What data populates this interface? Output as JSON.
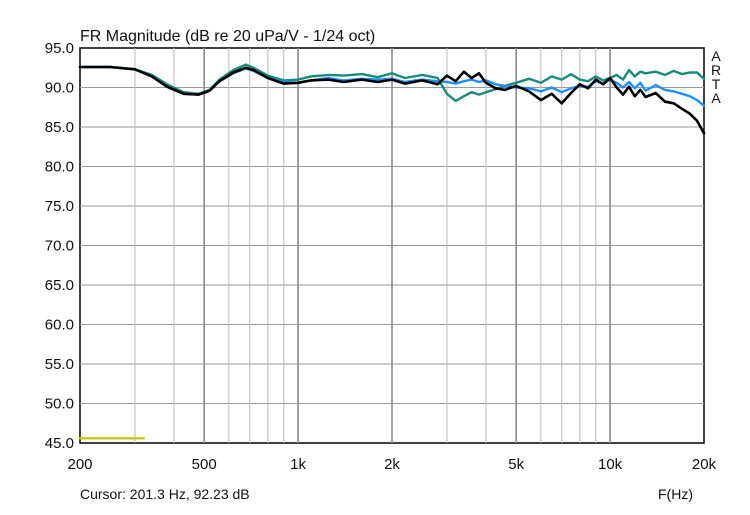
{
  "chart_data": {
    "type": "line",
    "title": "FR Magnitude (dB re 20 uPa/V - 1/24 oct)",
    "xlabel": "F(Hz)",
    "ylabel": "",
    "xscale": "log",
    "xlim": [
      200,
      20000
    ],
    "ylim": [
      45,
      95
    ],
    "x_ticks": [
      200,
      500,
      1000,
      2000,
      5000,
      10000,
      20000
    ],
    "x_tick_labels": [
      "200",
      "500",
      "1k",
      "2k",
      "5k",
      "10k",
      "20k"
    ],
    "y_ticks": [
      95,
      90,
      85,
      80,
      75,
      70,
      65,
      60,
      55,
      50,
      45
    ],
    "y_tick_labels": [
      "95.0",
      "90.0",
      "85.0",
      "80.0",
      "75.0",
      "70.0",
      "65.0",
      "60.0",
      "55.0",
      "50.0",
      "45.0"
    ],
    "grid": true,
    "cursor_readout": "Cursor: 201.3 Hz, 92.23 dB",
    "brand_letters": [
      "A",
      "R",
      "T",
      "A"
    ],
    "series": [
      {
        "color": "#1a8a7a",
        "x": [
          200,
          250,
          300,
          340,
          380,
          430,
          480,
          520,
          560,
          620,
          680,
          720,
          800,
          900,
          1000,
          1100,
          1250,
          1400,
          1600,
          1800,
          2000,
          2200,
          2500,
          2800,
          3000,
          3200,
          3400,
          3600,
          3800,
          4000,
          4300,
          4600,
          5000,
          5500,
          6000,
          6500,
          7000,
          7500,
          8000,
          8500,
          9000,
          9500,
          10000,
          10500,
          11000,
          11500,
          12000,
          12500,
          13000,
          14000,
          15000,
          16000,
          17000,
          18000,
          19000,
          20000
        ],
        "y": [
          92.6,
          92.6,
          92.3,
          91.6,
          90.4,
          89.4,
          89.2,
          89.7,
          91.0,
          92.2,
          92.9,
          92.5,
          91.5,
          90.9,
          91.0,
          91.4,
          91.6,
          91.5,
          91.7,
          91.3,
          91.8,
          91.2,
          91.6,
          91.2,
          89.2,
          88.3,
          88.9,
          89.4,
          89.1,
          89.4,
          89.8,
          90.2,
          90.6,
          91.1,
          90.6,
          91.4,
          91.0,
          91.7,
          91.0,
          90.8,
          91.4,
          90.9,
          91.2,
          91.6,
          91.0,
          92.2,
          91.4,
          92.0,
          91.8,
          92.0,
          91.6,
          92.1,
          91.7,
          91.9,
          91.9,
          91.1
        ]
      },
      {
        "color": "#1f8fff",
        "x": [
          200,
          250,
          300,
          340,
          380,
          430,
          480,
          520,
          560,
          620,
          680,
          720,
          800,
          900,
          1000,
          1100,
          1250,
          1400,
          1600,
          1800,
          2000,
          2200,
          2500,
          2800,
          3000,
          3200,
          3400,
          3600,
          3800,
          4000,
          4300,
          4600,
          5000,
          5500,
          6000,
          6500,
          7000,
          7500,
          8000,
          8500,
          9000,
          9500,
          10000,
          10500,
          11000,
          11500,
          12000,
          12500,
          13000,
          14000,
          15000,
          16000,
          17000,
          18000,
          19000,
          20000
        ],
        "y": [
          92.6,
          92.6,
          92.3,
          91.4,
          90.1,
          89.2,
          89.1,
          89.6,
          90.8,
          91.8,
          92.4,
          92.1,
          91.2,
          90.7,
          90.6,
          90.9,
          91.2,
          90.9,
          91.1,
          91.0,
          91.1,
          90.7,
          91.0,
          90.8,
          90.7,
          90.5,
          90.8,
          91.0,
          90.7,
          90.9,
          90.4,
          90.2,
          90.0,
          89.9,
          89.5,
          90.0,
          89.4,
          89.9,
          90.2,
          90.1,
          90.8,
          90.5,
          91.0,
          90.6,
          90.0,
          90.7,
          89.9,
          90.6,
          89.6,
          90.3,
          89.7,
          89.5,
          89.2,
          88.9,
          88.4,
          87.7
        ]
      },
      {
        "color": "#000000",
        "x": [
          200,
          250,
          300,
          340,
          380,
          430,
          480,
          520,
          560,
          620,
          680,
          720,
          800,
          900,
          1000,
          1100,
          1250,
          1400,
          1600,
          1800,
          2000,
          2200,
          2500,
          2800,
          3000,
          3200,
          3400,
          3600,
          3800,
          4000,
          4300,
          4600,
          5000,
          5500,
          6000,
          6500,
          7000,
          7500,
          8000,
          8500,
          9000,
          9500,
          10000,
          10500,
          11000,
          11500,
          12000,
          12500,
          13000,
          14000,
          15000,
          16000,
          17000,
          18000,
          19000,
          20000
        ],
        "y": [
          92.6,
          92.6,
          92.3,
          91.4,
          90.1,
          89.2,
          89.1,
          89.6,
          90.8,
          91.9,
          92.5,
          92.2,
          91.2,
          90.5,
          90.6,
          90.9,
          91.0,
          90.7,
          91.0,
          90.7,
          91.0,
          90.5,
          90.9,
          90.4,
          91.5,
          90.8,
          92.0,
          91.2,
          91.8,
          90.6,
          89.9,
          89.7,
          90.2,
          89.5,
          88.4,
          89.2,
          88.0,
          89.3,
          90.4,
          89.9,
          91.0,
          90.4,
          91.2,
          90.0,
          89.1,
          90.1,
          88.9,
          89.7,
          88.8,
          89.3,
          88.2,
          88.0,
          87.3,
          86.7,
          85.8,
          84.2
        ]
      },
      {
        "color": "#c8c800",
        "x": [
          200,
          320
        ],
        "y": [
          45.6,
          45.6
        ]
      }
    ]
  }
}
